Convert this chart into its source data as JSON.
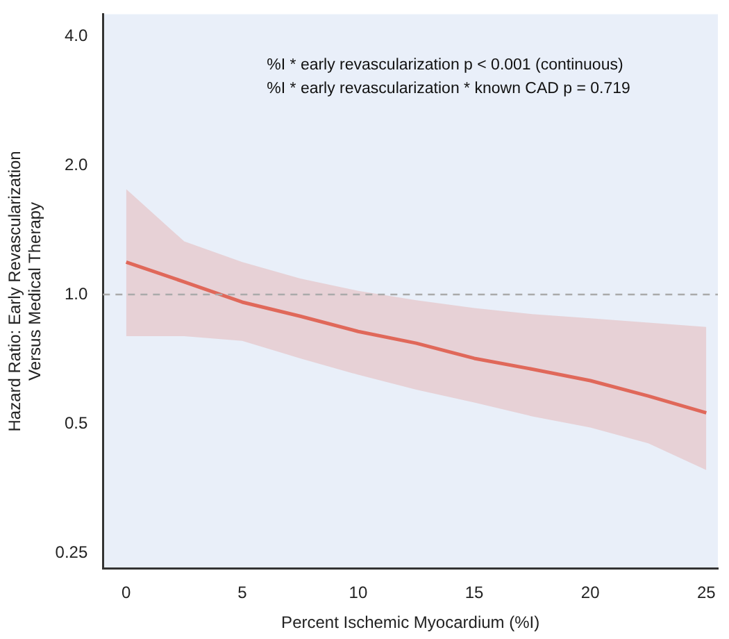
{
  "chart_data": {
    "type": "line",
    "xlabel": "Percent Ischemic Myocardium (%I)",
    "ylabel": "Hazard Ratio: Early Revascularization\nVersus Medical Therapy",
    "annotations": [
      "%I * early revascularization p < 0.001 (continuous)",
      "%I * early revascularization * known CAD p = 0.719"
    ],
    "x": [
      0,
      2.5,
      5,
      7.5,
      10,
      12.5,
      15,
      17.5,
      20,
      22.5,
      25
    ],
    "series": [
      {
        "color": "#e0685a",
        "values": [
          1.19,
          1.07,
          0.96,
          0.89,
          0.82,
          0.77,
          0.71,
          0.67,
          0.63,
          0.58,
          0.53
        ],
        "lower": [
          0.8,
          0.8,
          0.78,
          0.71,
          0.65,
          0.6,
          0.56,
          0.52,
          0.49,
          0.45,
          0.39
        ],
        "upper": [
          1.76,
          1.33,
          1.19,
          1.09,
          1.02,
          0.97,
          0.93,
          0.9,
          0.88,
          0.86,
          0.84
        ]
      }
    ],
    "xlim": [
      -1,
      25.5
    ],
    "xticks": [
      0,
      5,
      10,
      15,
      20,
      25
    ],
    "ylim": [
      0.23,
      4.5
    ],
    "yticks": [
      {
        "value": 0.25,
        "label": "0.25"
      },
      {
        "value": 0.5,
        "label": "0.5"
      },
      {
        "value": 1,
        "label": "1.0"
      },
      {
        "value": 2,
        "label": "2.0"
      },
      {
        "value": 4,
        "label": "4.0"
      }
    ],
    "log": "y",
    "grid": false,
    "legend": false,
    "marker": "none",
    "line_style": "solid",
    "ref_lines": [
      {
        "axis": "y",
        "value": 1,
        "color": "#aaaaaa",
        "line_style": "dashed"
      }
    ]
  }
}
